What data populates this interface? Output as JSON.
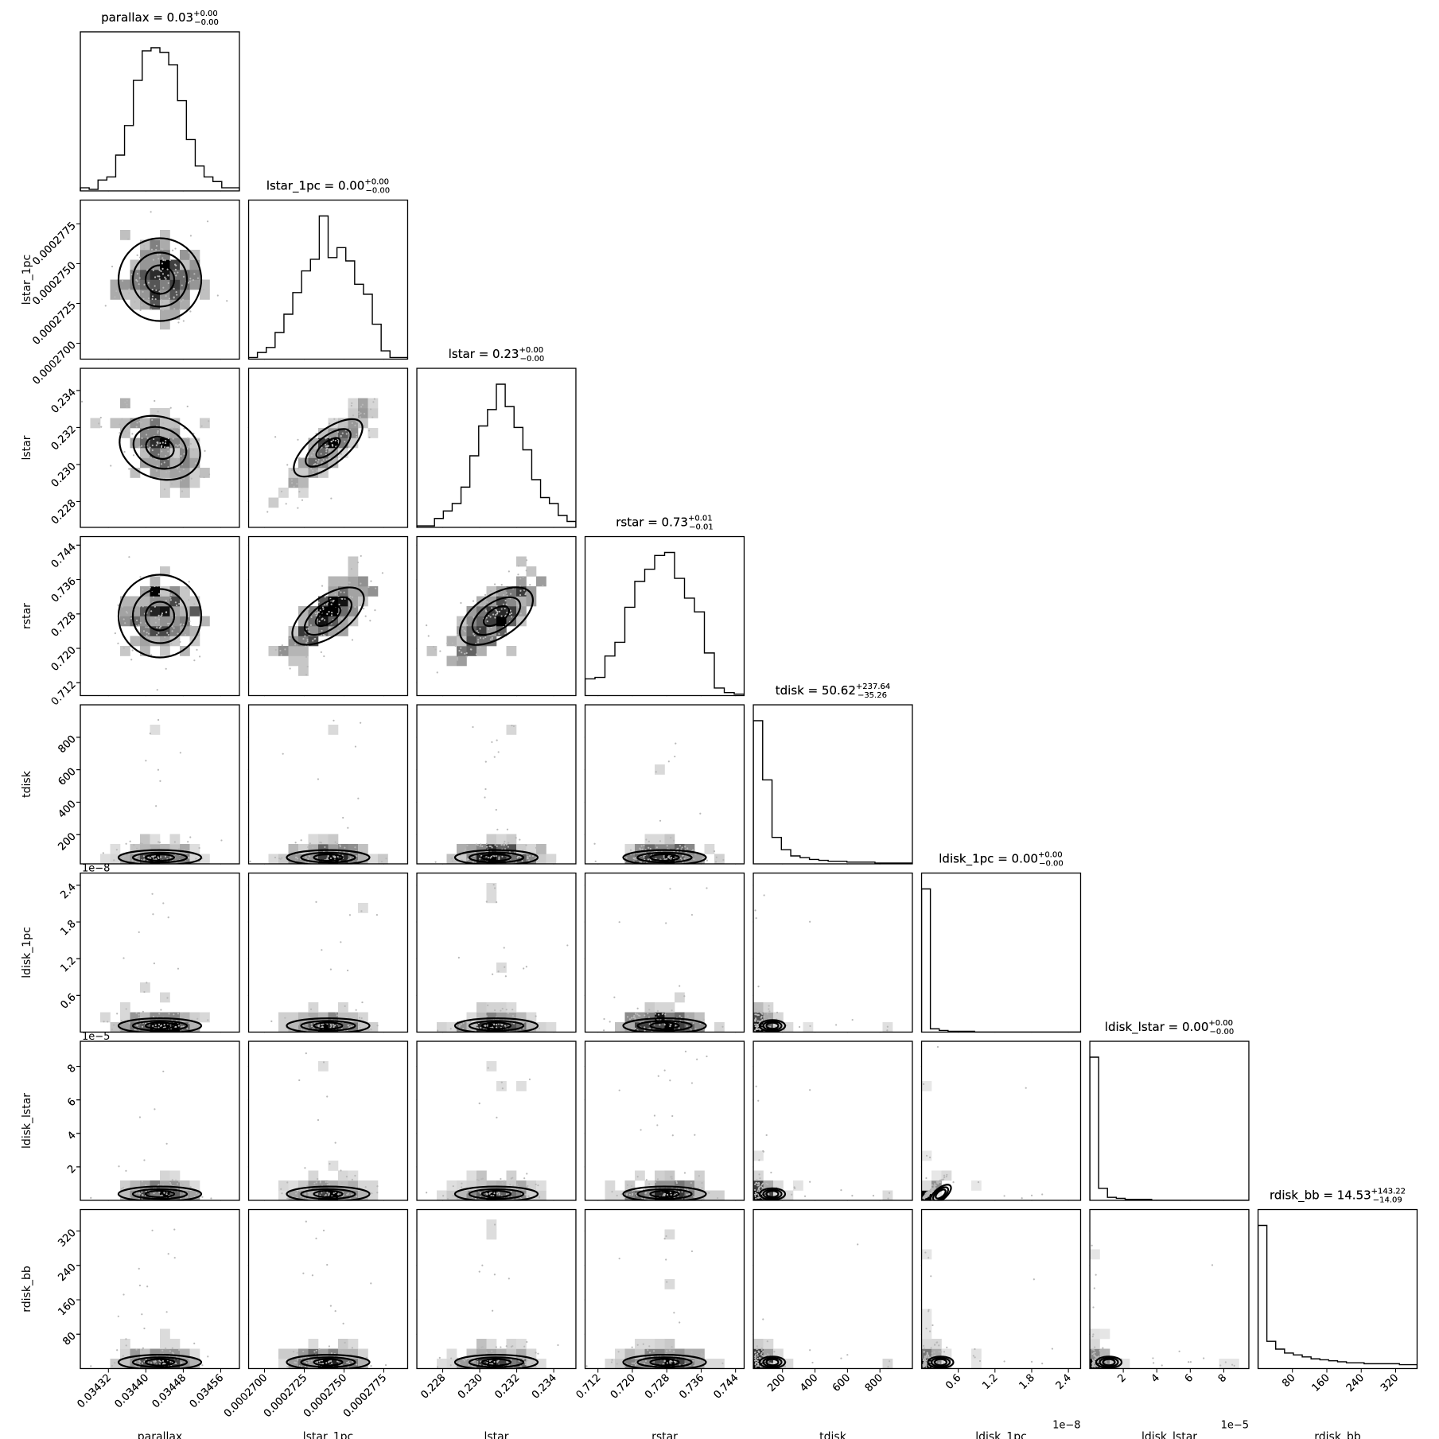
{
  "chart_data": {
    "type": "corner",
    "parameters": [
      {
        "name": "parallax",
        "label": "parallax",
        "range": [
          0.03426,
          0.0346
        ],
        "ticks": [
          0.03432,
          0.0344,
          0.03448,
          0.03456
        ],
        "tick_labels": [
          "0.03432",
          "0.03440",
          "0.03448",
          "0.03456"
        ],
        "median": 0.03445,
        "sigma": 4e-05,
        "title_main": "parallax = 0.03",
        "title_sup": "+0.00",
        "title_sub": "−0.00",
        "offset_text": ""
      },
      {
        "name": "lstar_1pc",
        "label": "lstar_1pc",
        "range": [
          0.000269,
          0.000279
        ],
        "ticks": [
          0.00027,
          0.0002725,
          0.000275,
          0.0002775
        ],
        "tick_labels": [
          "0.0002700",
          "0.0002725",
          "0.0002750",
          "0.0002775"
        ],
        "median": 0.0002742,
        "sigma": 1.2e-06,
        "title_main": "lstar_1pc = 0.00",
        "title_sup": "+0.00",
        "title_sub": "−0.00",
        "offset_text": ""
      },
      {
        "name": "lstar",
        "label": "lstar",
        "range": [
          0.2266,
          0.2352
        ],
        "ticks": [
          0.228,
          0.23,
          0.232,
          0.234
        ],
        "tick_labels": [
          "0.228",
          "0.230",
          "0.232",
          "0.234"
        ],
        "median": 0.2311,
        "sigma": 0.0012,
        "title_main": "lstar = 0.23",
        "title_sup": "+0.00",
        "title_sub": "−0.00",
        "offset_text": ""
      },
      {
        "name": "rstar",
        "label": "rstar",
        "range": [
          0.709,
          0.746
        ],
        "ticks": [
          0.712,
          0.72,
          0.728,
          0.736,
          0.744
        ],
        "tick_labels": [
          "0.712",
          "0.720",
          "0.728",
          "0.736",
          "0.744"
        ],
        "median": 0.7275,
        "sigma": 0.0055,
        "title_main": "rstar = 0.73",
        "title_sup": "+0.01",
        "title_sub": "−0.01",
        "offset_text": ""
      },
      {
        "name": "tdisk",
        "label": "tdisk",
        "range": [
          20,
          1000
        ],
        "ticks": [
          200,
          400,
          600,
          800
        ],
        "tick_labels": [
          "200",
          "400",
          "600",
          "800"
        ],
        "median": 50.62,
        "sigma": 35.26,
        "title_main": "tdisk = 50.62",
        "title_sup": "+237.64",
        "title_sub": "−35.26",
        "offset_text": ""
      },
      {
        "name": "ldisk_1pc",
        "label": "ldisk_1pc",
        "range": [
          0,
          2.6e-08
        ],
        "ticks": [
          6e-09,
          1.2e-08,
          1.8e-08,
          2.4e-08
        ],
        "tick_labels": [
          "0.6",
          "1.2",
          "1.8",
          "2.4"
        ],
        "median": 0,
        "sigma": 0,
        "title_main": "ldisk_1pc = 0.00",
        "title_sup": "+0.00",
        "title_sub": "−0.00",
        "offset_text": "1e−8"
      },
      {
        "name": "ldisk_lstar",
        "label": "ldisk_lstar",
        "range": [
          0,
          9.5e-05
        ],
        "ticks": [
          2e-05,
          4e-05,
          6e-05,
          8e-05
        ],
        "tick_labels": [
          "2",
          "4",
          "6",
          "8"
        ],
        "median": 0,
        "sigma": 0,
        "title_main": "ldisk_lstar = 0.00",
        "title_sup": "+0.00",
        "title_sub": "−0.00",
        "offset_text": "1e−5"
      },
      {
        "name": "rdisk_bb",
        "label": "rdisk_bb",
        "range": [
          0,
          370
        ],
        "ticks": [
          80,
          160,
          240,
          320
        ],
        "tick_labels": [
          "80",
          "160",
          "240",
          "320"
        ],
        "median": 14.53,
        "sigma": 14.09,
        "title_main": "rdisk_bb = 14.53",
        "title_sup": "+143.22",
        "title_sub": "−14.09",
        "offset_text": ""
      }
    ],
    "histograms": [
      [
        2,
        1,
        7,
        9,
        23,
        42,
        71,
        90,
        92,
        89,
        81,
        58,
        33,
        16,
        9,
        6,
        2,
        2
      ],
      [
        1,
        4,
        7,
        16,
        27,
        40,
        53,
        60,
        86,
        61,
        67,
        59,
        45,
        39,
        21,
        5,
        1,
        1
      ],
      [
        1,
        1,
        6,
        11,
        16,
        27,
        48,
        68,
        79,
        96,
        81,
        67,
        52,
        32,
        20,
        16,
        8,
        4
      ],
      [
        11,
        12,
        26,
        35,
        58,
        75,
        83,
        92,
        94,
        77,
        64,
        55,
        28,
        5,
        2,
        1
      ],
      [
        162,
        95,
        30,
        16,
        9,
        7,
        5,
        4,
        3,
        3,
        2,
        2,
        2,
        1,
        1,
        1,
        1
      ],
      [
        175,
        4,
        2,
        1,
        1,
        1,
        0,
        0,
        0,
        0,
        0,
        0,
        0,
        0,
        0,
        0,
        0,
        0
      ],
      [
        143,
        12,
        3,
        2,
        1,
        1,
        1,
        0,
        0,
        0,
        0,
        0,
        0,
        0,
        0,
        0,
        0,
        0
      ],
      [
        147,
        28,
        20,
        16,
        14,
        12,
        10,
        9,
        8,
        7,
        6,
        6,
        5,
        5,
        5,
        5,
        4,
        4
      ]
    ],
    "correlations": [
      [
        1,
        0,
        -0.4,
        0,
        0,
        0,
        0,
        0
      ],
      [
        0,
        1,
        0.9,
        0.8,
        0,
        0,
        0,
        0
      ],
      [
        -0.4,
        0.9,
        1,
        0.75,
        0,
        0,
        0,
        0
      ],
      [
        0,
        0.8,
        0.75,
        1,
        0,
        0,
        0,
        0
      ],
      [
        0,
        0,
        0,
        0,
        1,
        0,
        0,
        0
      ],
      [
        0,
        0,
        0,
        0,
        0,
        1,
        0.99,
        0
      ],
      [
        0,
        0,
        0,
        0,
        0,
        0.99,
        1,
        0
      ],
      [
        0,
        0,
        0,
        0,
        0,
        0,
        0,
        1
      ]
    ]
  }
}
